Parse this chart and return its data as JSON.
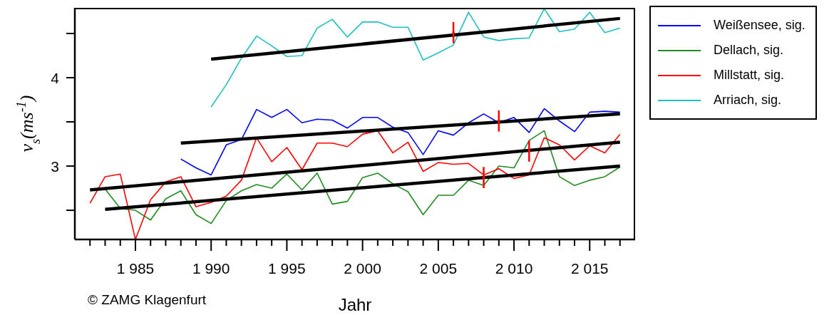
{
  "chart_data": {
    "type": "line",
    "xlabel": "Jahr",
    "ylabel": "v$_{s}$(ms$^{-1}$)",
    "annotations": [
      "© ZAMG Klagenfurt"
    ],
    "x": [
      1982,
      1983,
      1984,
      1985,
      1986,
      1987,
      1988,
      1989,
      1990,
      1991,
      1992,
      1993,
      1994,
      1995,
      1996,
      1997,
      1998,
      1999,
      2000,
      2001,
      2002,
      2003,
      2004,
      2005,
      2006,
      2007,
      2008,
      2009,
      2010,
      2011,
      2012,
      2013,
      2014,
      2015,
      2016,
      2017
    ],
    "series": [
      {
        "name": "Weißensee, sig.",
        "color": "#0000ff",
        "values": [
          null,
          null,
          null,
          null,
          null,
          null,
          3.08,
          2.98,
          2.9,
          3.24,
          3.3,
          3.64,
          3.55,
          3.64,
          3.49,
          3.53,
          3.52,
          3.43,
          3.55,
          3.55,
          3.44,
          3.38,
          3.13,
          3.4,
          3.35,
          3.49,
          3.59,
          3.49,
          3.55,
          3.38,
          3.65,
          3.51,
          3.39,
          3.61,
          3.62,
          3.61
        ]
      },
      {
        "name": "Dellach, sig.",
        "color": "#228b22",
        "values": [
          null,
          2.74,
          2.52,
          2.5,
          2.39,
          2.63,
          2.72,
          2.45,
          2.35,
          2.61,
          2.72,
          2.79,
          2.75,
          2.91,
          2.73,
          2.92,
          2.57,
          2.6,
          2.87,
          2.92,
          2.8,
          2.71,
          2.45,
          2.67,
          2.67,
          2.84,
          2.78,
          3.0,
          2.98,
          3.29,
          3.4,
          2.88,
          2.78,
          2.84,
          2.88,
          2.99
        ]
      },
      {
        "name": "Millstatt, sig.",
        "color": "#ff0000",
        "values": [
          2.58,
          2.88,
          2.91,
          2.17,
          2.62,
          2.82,
          2.88,
          2.54,
          2.59,
          2.66,
          2.84,
          3.32,
          3.05,
          3.21,
          2.96,
          3.26,
          3.26,
          3.22,
          3.36,
          3.4,
          3.15,
          3.27,
          2.94,
          3.04,
          3.02,
          3.03,
          2.9,
          2.97,
          2.86,
          2.9,
          3.32,
          3.24,
          3.07,
          3.23,
          3.15,
          3.36
        ]
      },
      {
        "name": "Arriach, sig.",
        "color": "#20c0c0",
        "values": [
          null,
          null,
          null,
          null,
          null,
          null,
          null,
          null,
          3.67,
          3.92,
          4.22,
          4.47,
          4.36,
          4.24,
          4.25,
          4.56,
          4.66,
          4.46,
          4.63,
          4.63,
          4.57,
          4.57,
          4.2,
          4.28,
          4.37,
          4.74,
          4.46,
          4.42,
          4.44,
          4.45,
          4.78,
          4.52,
          4.55,
          4.74,
          4.51,
          4.56
        ]
      },
      {
        "type": "line",
        "color": "#000000",
        "x": [
          1988,
          2017
        ],
        "values": [
          3.26,
          3.59
        ]
      },
      {
        "type": "line",
        "color": "#000000",
        "x": [
          1983,
          2017
        ],
        "values": [
          2.51,
          3.0
        ]
      },
      {
        "type": "line",
        "color": "#000000",
        "x": [
          1982,
          2017
        ],
        "values": [
          2.73,
          3.27
        ]
      },
      {
        "type": "line",
        "color": "#000000",
        "x": [
          1990,
          2017
        ],
        "values": [
          4.21,
          4.67
        ]
      },
      {
        "type": "scatter",
        "color": "#ff0000",
        "marker": "square",
        "x": [
          2006,
          2008,
          2009,
          2011
        ],
        "values": [
          4.51,
          2.87,
          3.51,
          3.17
        ],
        "errors": [
          0.12,
          0.12,
          0.12,
          0.12
        ]
      }
    ],
    "xlim": [
      1981,
      2018
    ],
    "xticks": [
      {
        "value": 1982,
        "label": null
      },
      {
        "value": 1983,
        "label": null
      },
      {
        "value": 1984,
        "label": null
      },
      {
        "value": 1985,
        "label": "1 985"
      },
      {
        "value": 1986,
        "label": null
      },
      {
        "value": 1987,
        "label": null
      },
      {
        "value": 1988,
        "label": null
      },
      {
        "value": 1989,
        "label": null
      },
      {
        "value": 1990,
        "label": "1 990"
      },
      {
        "value": 1991,
        "label": null
      },
      {
        "value": 1992,
        "label": null
      },
      {
        "value": 1993,
        "label": null
      },
      {
        "value": 1994,
        "label": null
      },
      {
        "value": 1995,
        "label": "1 995"
      },
      {
        "value": 1996,
        "label": null
      },
      {
        "value": 1997,
        "label": null
      },
      {
        "value": 1998,
        "label": null
      },
      {
        "value": 1999,
        "label": null
      },
      {
        "value": 2000,
        "label": "2 000"
      },
      {
        "value": 2001,
        "label": null
      },
      {
        "value": 2002,
        "label": null
      },
      {
        "value": 2003,
        "label": null
      },
      {
        "value": 2004,
        "label": null
      },
      {
        "value": 2005,
        "label": "2 005"
      },
      {
        "value": 2006,
        "label": null
      },
      {
        "value": 2007,
        "label": null
      },
      {
        "value": 2008,
        "label": null
      },
      {
        "value": 2009,
        "label": null
      },
      {
        "value": 2010,
        "label": "2 010"
      },
      {
        "value": 2011,
        "label": null
      },
      {
        "value": 2012,
        "label": null
      },
      {
        "value": 2013,
        "label": null
      },
      {
        "value": 2014,
        "label": null
      },
      {
        "value": 2015,
        "label": "2 015"
      },
      {
        "value": 2016,
        "label": null
      },
      {
        "value": 2017,
        "label": null
      }
    ],
    "ylim": [
      2.17,
      4.79
    ],
    "yticks": [
      {
        "value": 2.5,
        "label": null
      },
      3,
      {
        "value": 3.5,
        "label": null
      },
      4,
      {
        "value": 4.5,
        "label": null
      }
    ],
    "grid": false,
    "legend": "top right",
    "marker": "none",
    "line_style": "solid"
  }
}
